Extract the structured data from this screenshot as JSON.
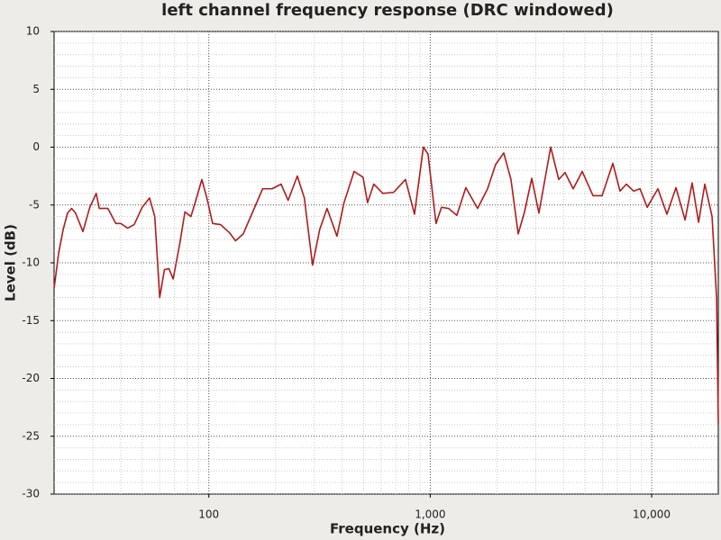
{
  "chart_data": {
    "type": "line",
    "title": "left channel frequency response (DRC windowed)",
    "x_label": "Frequency (Hz)",
    "y_label": "Level (dB)",
    "xscale": "log",
    "xlim": [
      20,
      20000
    ],
    "xticks": [
      100,
      {
        "value": 1000,
        "label": "1,000"
      },
      {
        "value": 10000,
        "label": "10,000"
      }
    ],
    "ylim": [
      -30,
      10
    ],
    "yticks": [
      -30,
      -25,
      -20,
      -15,
      -10,
      -5,
      0,
      5,
      10
    ],
    "grid": true,
    "minor_grid": true,
    "series": [
      {
        "name": "left channel",
        "color": "#b01c1c",
        "x": [
          20,
          21,
          22,
          23,
          24,
          25,
          27,
          29,
          31,
          32,
          35,
          38,
          40,
          43,
          46,
          50,
          54,
          57,
          60,
          63,
          66,
          69,
          74,
          78,
          83,
          88,
          93,
          98,
          104,
          113,
          124,
          132,
          143,
          157,
          175,
          193,
          212,
          228,
          251,
          270,
          294,
          317,
          342,
          379,
          408,
          453,
          497,
          521,
          556,
          611,
          684,
          773,
          849,
          931,
          977,
          1062,
          1124,
          1211,
          1318,
          1448,
          1636,
          1815,
          1974,
          2148,
          2316,
          2496,
          2666,
          2874,
          3096,
          3500,
          3805,
          4062,
          4423,
          4858,
          5433,
          5970,
          6679,
          7197,
          7690,
          8292,
          8860,
          9546,
          10672,
          11721,
          12880,
          14155,
          15240,
          16292,
          17389,
          18744,
          19646,
          20000
        ],
        "values": [
          -12.2,
          -9.1,
          -7.1,
          -5.7,
          -5.3,
          -5.7,
          -7.3,
          -5.2,
          -4.0,
          -5.3,
          -5.3,
          -6.6,
          -6.6,
          -7.0,
          -6.7,
          -5.2,
          -4.4,
          -6.0,
          -13.0,
          -10.6,
          -10.5,
          -11.4,
          -8.3,
          -5.6,
          -6.0,
          -4.4,
          -2.8,
          -4.4,
          -6.6,
          -6.7,
          -7.4,
          -8.1,
          -7.5,
          -5.7,
          -3.6,
          -3.6,
          -3.2,
          -4.6,
          -2.5,
          -4.4,
          -10.2,
          -7.1,
          -5.3,
          -7.7,
          -4.8,
          -2.1,
          -2.6,
          -4.8,
          -3.2,
          -4.0,
          -3.9,
          -2.8,
          -5.8,
          0,
          -0.6,
          -6.6,
          -5.2,
          -5.3,
          -5.9,
          -3.5,
          -5.3,
          -3.6,
          -1.5,
          -0.5,
          -2.8,
          -7.5,
          -5.6,
          -2.7,
          -5.7,
          0,
          -2.8,
          -2.2,
          -3.6,
          -2.1,
          -4.2,
          -4.2,
          -1.4,
          -3.8,
          -3.2,
          -3.8,
          -3.6,
          -5.2,
          -3.6,
          -5.8,
          -3.5,
          -6.3,
          -3.1,
          -6.5,
          -3.2,
          -6.0,
          -13.0,
          -23.9
        ]
      }
    ]
  }
}
